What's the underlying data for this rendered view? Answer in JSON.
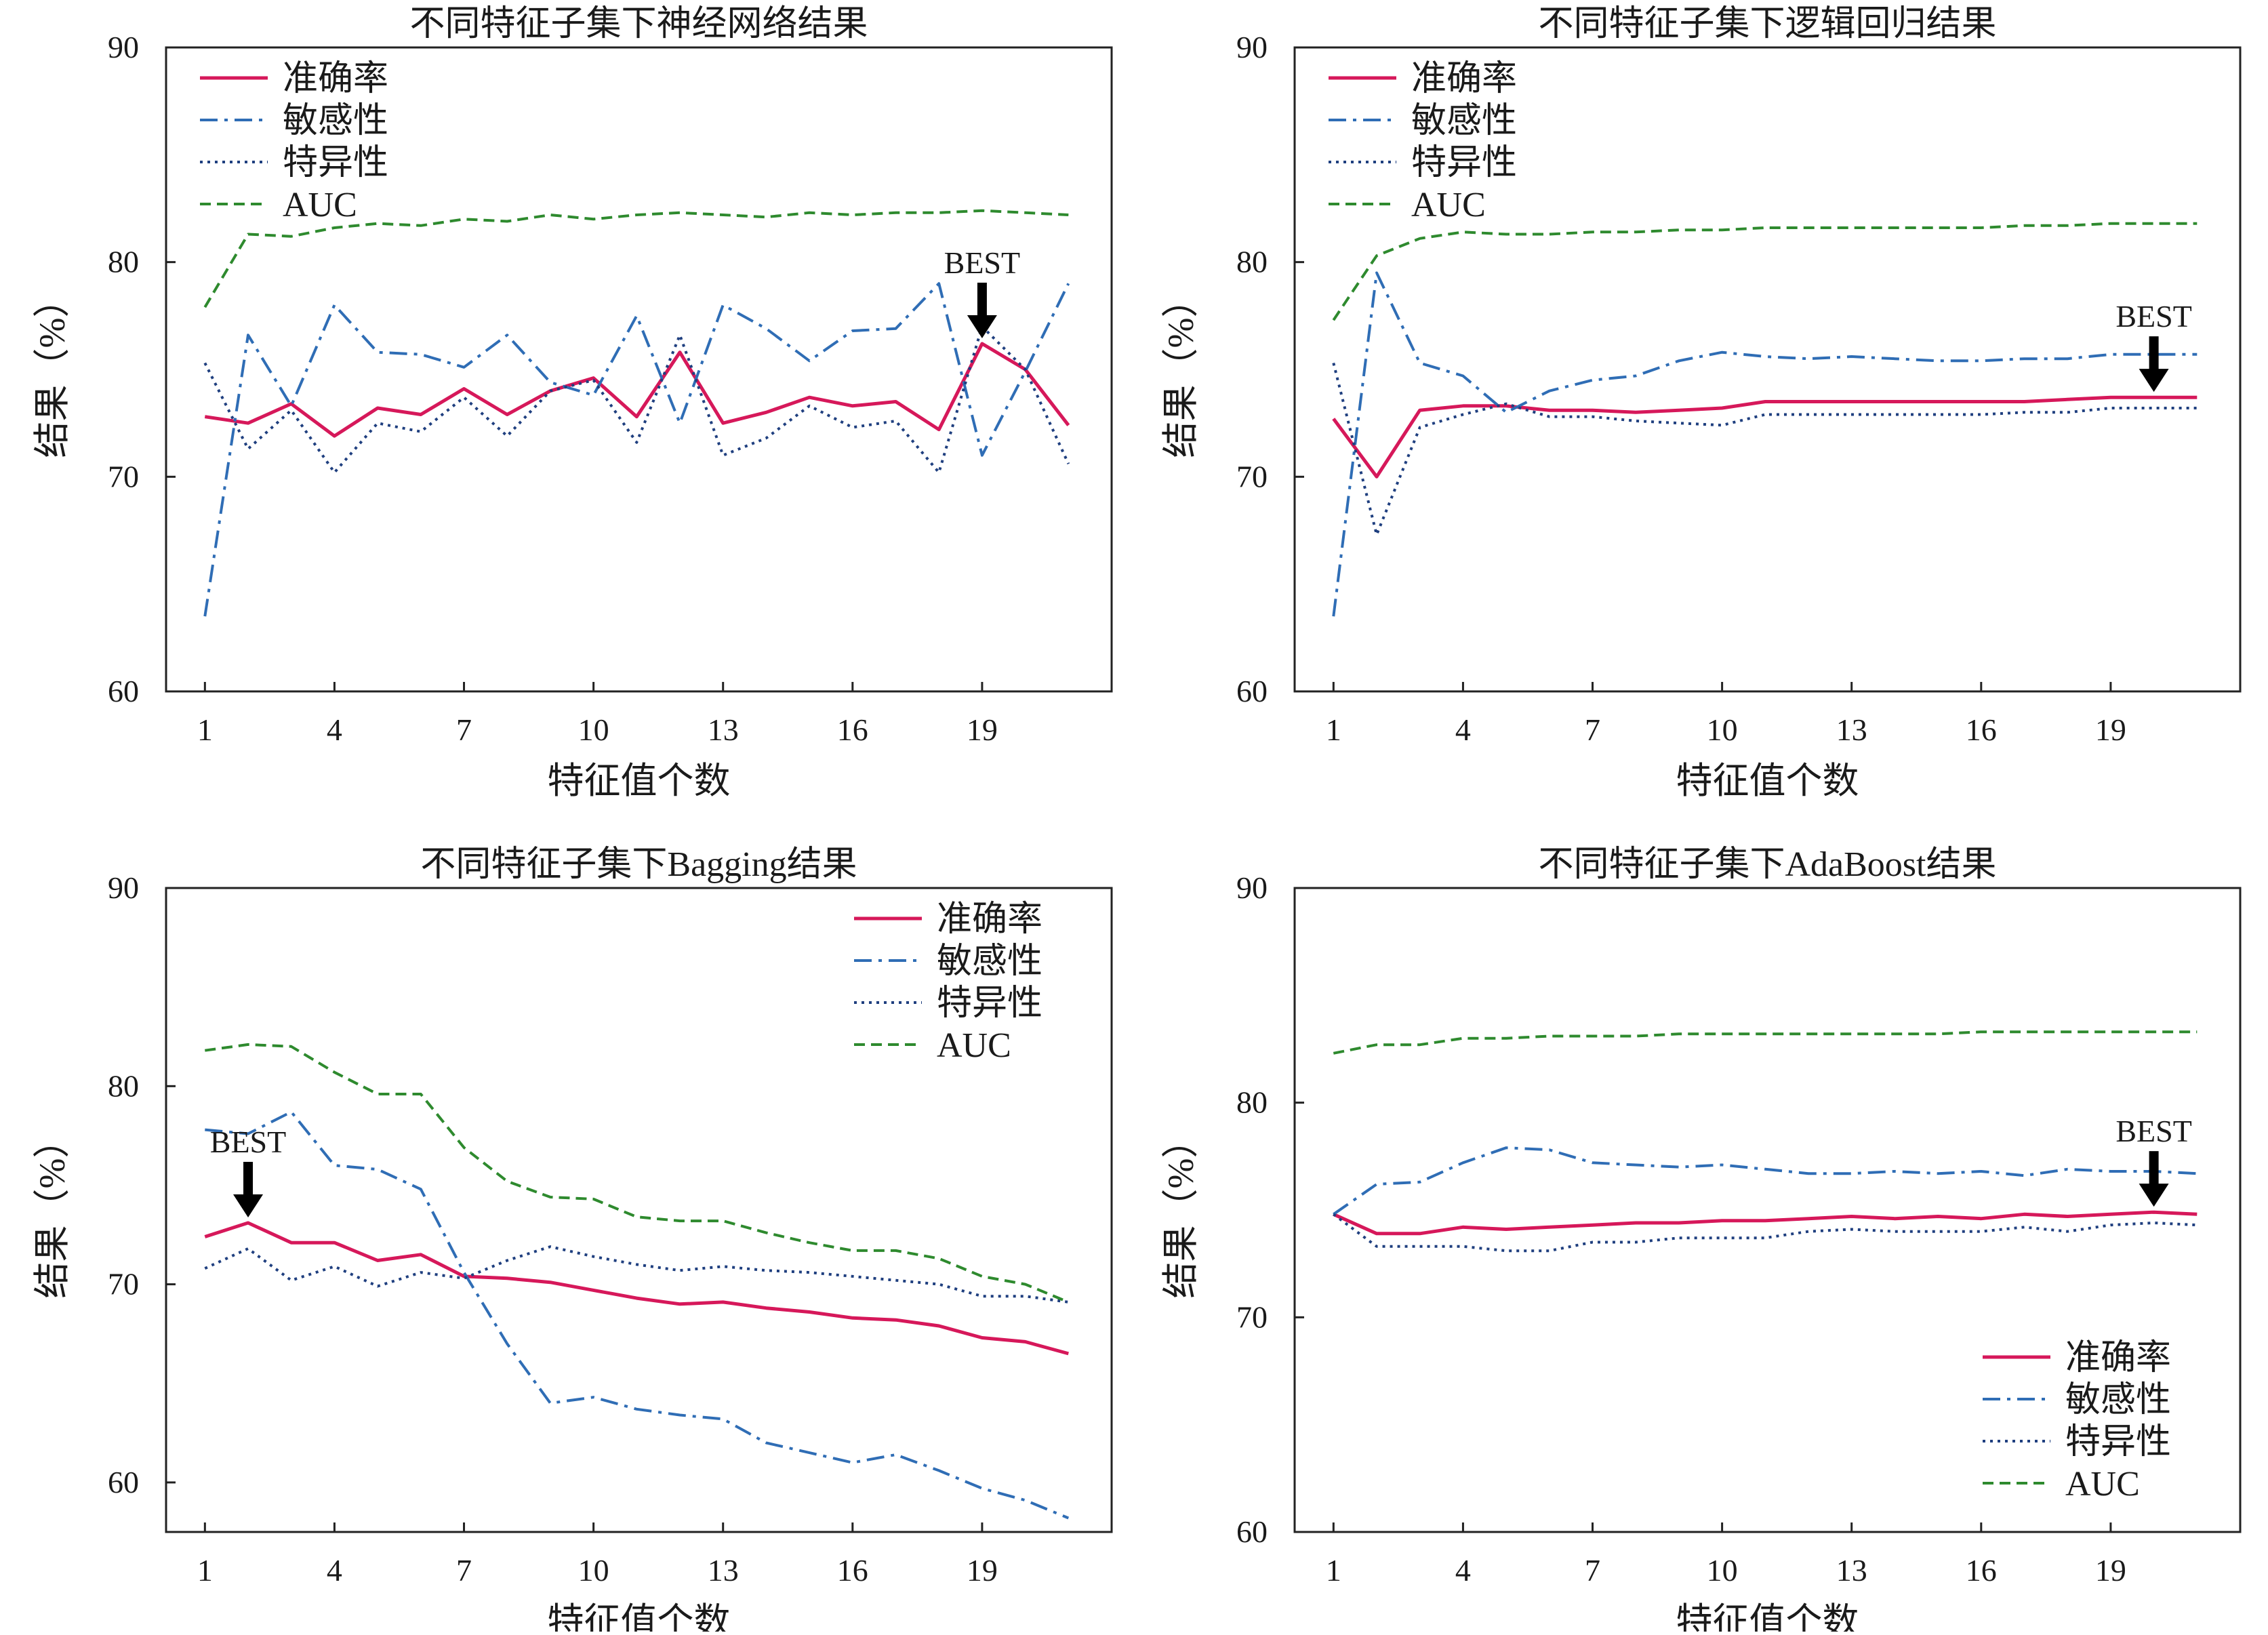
{
  "colors": {
    "accuracy": "#d6185a",
    "sensitivity": "#2f6db5",
    "specificity": "#1f3f7f",
    "auc": "#2e8a2e",
    "axis": "#222222"
  },
  "best_label": "BEST",
  "chart_data": [
    {
      "type": "line",
      "title": "不同特征子集下神经网络结果",
      "xlabel": "特征值个数",
      "ylabel": "结果（%）",
      "xticks": [
        1,
        4,
        7,
        10,
        13,
        16,
        19
      ],
      "yticks": [
        60,
        70,
        80,
        90
      ],
      "xlim": [
        0.1,
        22
      ],
      "ylim": [
        60,
        90
      ],
      "legend_position": "top-left",
      "best_x": 19,
      "x": [
        1,
        2,
        3,
        4,
        5,
        6,
        7,
        8,
        9,
        10,
        11,
        12,
        13,
        14,
        15,
        16,
        17,
        18,
        19,
        20,
        21
      ],
      "series": [
        {
          "name": "准确率",
          "style": "solid",
          "values": [
            72.8,
            72.5,
            73.4,
            71.9,
            73.2,
            72.9,
            74.1,
            72.9,
            74.0,
            74.6,
            72.8,
            75.8,
            72.5,
            73.0,
            73.7,
            73.3,
            73.5,
            72.2,
            76.2,
            75.0,
            72.4
          ]
        },
        {
          "name": "敏感性",
          "style": "dashdot",
          "values": [
            63.5,
            76.6,
            73.3,
            78.0,
            75.8,
            75.7,
            75.1,
            76.6,
            74.4,
            73.8,
            77.5,
            72.5,
            78.0,
            76.9,
            75.4,
            76.8,
            76.9,
            79.0,
            71.0,
            74.9,
            79.0
          ]
        },
        {
          "name": "特异性",
          "style": "dotted",
          "values": [
            75.3,
            71.3,
            73.1,
            70.2,
            72.5,
            72.1,
            73.7,
            71.9,
            74.0,
            74.5,
            71.6,
            76.6,
            71.0,
            71.8,
            73.3,
            72.3,
            72.6,
            70.2,
            77.0,
            75.0,
            70.6
          ]
        },
        {
          "name": "AUC",
          "style": "dashed",
          "values": [
            77.9,
            81.3,
            81.2,
            81.6,
            81.8,
            81.7,
            82.0,
            81.9,
            82.2,
            82.0,
            82.2,
            82.3,
            82.2,
            82.1,
            82.3,
            82.2,
            82.3,
            82.3,
            82.4,
            82.3,
            82.2
          ]
        }
      ]
    },
    {
      "type": "line",
      "title": "不同特征子集下逻辑回归结果",
      "xlabel": "特征值个数",
      "ylabel": "结果（%）",
      "xticks": [
        1,
        4,
        7,
        10,
        13,
        16,
        19
      ],
      "yticks": [
        60,
        70,
        80,
        90
      ],
      "xlim": [
        0.1,
        22
      ],
      "ylim": [
        60,
        90
      ],
      "legend_position": "top-left",
      "best_x": 20,
      "x": [
        1,
        2,
        3,
        4,
        5,
        6,
        7,
        8,
        9,
        10,
        11,
        12,
        13,
        14,
        15,
        16,
        17,
        18,
        19,
        20,
        21
      ],
      "series": [
        {
          "name": "准确率",
          "style": "solid",
          "values": [
            72.7,
            70.0,
            73.1,
            73.3,
            73.3,
            73.1,
            73.1,
            73.0,
            73.1,
            73.2,
            73.5,
            73.5,
            73.5,
            73.5,
            73.5,
            73.5,
            73.5,
            73.6,
            73.7,
            73.7,
            73.7
          ]
        },
        {
          "name": "敏感性",
          "style": "dashdot",
          "values": [
            63.5,
            79.5,
            75.3,
            74.7,
            73.0,
            74.0,
            74.5,
            74.7,
            75.4,
            75.8,
            75.6,
            75.5,
            75.6,
            75.5,
            75.4,
            75.4,
            75.5,
            75.5,
            75.7,
            75.7,
            75.7
          ]
        },
        {
          "name": "特异性",
          "style": "dotted",
          "values": [
            75.3,
            67.3,
            72.3,
            72.9,
            73.4,
            72.8,
            72.8,
            72.6,
            72.5,
            72.4,
            72.9,
            72.9,
            72.9,
            72.9,
            72.9,
            72.9,
            73.0,
            73.0,
            73.2,
            73.2,
            73.2
          ]
        },
        {
          "name": "AUC",
          "style": "dashed",
          "values": [
            77.3,
            80.3,
            81.1,
            81.4,
            81.3,
            81.3,
            81.4,
            81.4,
            81.5,
            81.5,
            81.6,
            81.6,
            81.6,
            81.6,
            81.6,
            81.6,
            81.7,
            81.7,
            81.8,
            81.8,
            81.8
          ]
        }
      ]
    },
    {
      "type": "line",
      "title": "不同特征子集下Bagging结果",
      "xlabel": "特征值个数",
      "ylabel": "结果（%）",
      "xticks": [
        1,
        4,
        7,
        10,
        13,
        16,
        19
      ],
      "yticks": [
        60,
        70,
        80,
        90
      ],
      "xlim": [
        0.1,
        22
      ],
      "ylim": [
        57.5,
        90
      ],
      "legend_position": "top-right",
      "best_x": 2,
      "x": [
        1,
        2,
        3,
        4,
        5,
        6,
        7,
        8,
        9,
        10,
        11,
        12,
        13,
        14,
        15,
        16,
        17,
        18,
        19,
        20,
        21
      ],
      "series": [
        {
          "name": "准确率",
          "style": "solid",
          "values": [
            72.4,
            73.1,
            72.1,
            72.1,
            71.2,
            71.5,
            70.4,
            70.3,
            70.1,
            69.7,
            69.3,
            69.0,
            69.1,
            68.8,
            68.6,
            68.3,
            68.2,
            67.9,
            67.3,
            67.1,
            66.5
          ]
        },
        {
          "name": "敏感性",
          "style": "dashdot",
          "values": [
            77.8,
            77.6,
            78.7,
            76.0,
            75.8,
            74.8,
            70.6,
            67.0,
            64.0,
            64.3,
            63.7,
            63.4,
            63.2,
            62.0,
            61.5,
            61.0,
            61.4,
            60.6,
            59.7,
            59.1,
            58.2
          ]
        },
        {
          "name": "特异性",
          "style": "dotted",
          "values": [
            70.8,
            71.8,
            70.2,
            70.9,
            69.9,
            70.6,
            70.3,
            71.2,
            71.9,
            71.4,
            71.0,
            70.7,
            70.9,
            70.7,
            70.6,
            70.4,
            70.2,
            70.0,
            69.4,
            69.4,
            69.1
          ]
        },
        {
          "name": "AUC",
          "style": "dashed",
          "values": [
            81.8,
            82.1,
            82.0,
            80.7,
            79.6,
            79.6,
            76.9,
            75.2,
            74.4,
            74.3,
            73.4,
            73.2,
            73.2,
            72.6,
            72.1,
            71.7,
            71.7,
            71.3,
            70.4,
            70.0,
            69.1
          ]
        }
      ]
    },
    {
      "type": "line",
      "title": "不同特征子集下AdaBoost结果",
      "xlabel": "特征值个数",
      "ylabel": "结果（%）",
      "xticks": [
        1,
        4,
        7,
        10,
        13,
        16,
        19
      ],
      "yticks": [
        60,
        70,
        80,
        90
      ],
      "xlim": [
        0.1,
        22
      ],
      "ylim": [
        60,
        90
      ],
      "legend_position": "bottom-right",
      "best_x": 20,
      "x": [
        1,
        2,
        3,
        4,
        5,
        6,
        7,
        8,
        9,
        10,
        11,
        12,
        13,
        14,
        15,
        16,
        17,
        18,
        19,
        20,
        21
      ],
      "series": [
        {
          "name": "准确率",
          "style": "solid",
          "values": [
            74.8,
            73.9,
            73.9,
            74.2,
            74.1,
            74.2,
            74.3,
            74.4,
            74.4,
            74.5,
            74.5,
            74.6,
            74.7,
            74.6,
            74.7,
            74.6,
            74.8,
            74.7,
            74.8,
            74.9,
            74.8
          ]
        },
        {
          "name": "敏感性",
          "style": "dashdot",
          "values": [
            74.8,
            76.2,
            76.3,
            77.2,
            77.9,
            77.8,
            77.2,
            77.1,
            77.0,
            77.1,
            76.9,
            76.7,
            76.7,
            76.8,
            76.7,
            76.8,
            76.6,
            76.9,
            76.8,
            76.8,
            76.7
          ]
        },
        {
          "name": "特异性",
          "style": "dotted",
          "values": [
            74.8,
            73.3,
            73.3,
            73.3,
            73.1,
            73.1,
            73.5,
            73.5,
            73.7,
            73.7,
            73.7,
            74.0,
            74.1,
            74.0,
            74.0,
            74.0,
            74.2,
            74.0,
            74.3,
            74.4,
            74.3
          ]
        },
        {
          "name": "AUC",
          "style": "dashed",
          "values": [
            82.3,
            82.7,
            82.7,
            83.0,
            83.0,
            83.1,
            83.1,
            83.1,
            83.2,
            83.2,
            83.2,
            83.2,
            83.2,
            83.2,
            83.2,
            83.3,
            83.3,
            83.3,
            83.3,
            83.3,
            83.3
          ]
        }
      ]
    }
  ]
}
